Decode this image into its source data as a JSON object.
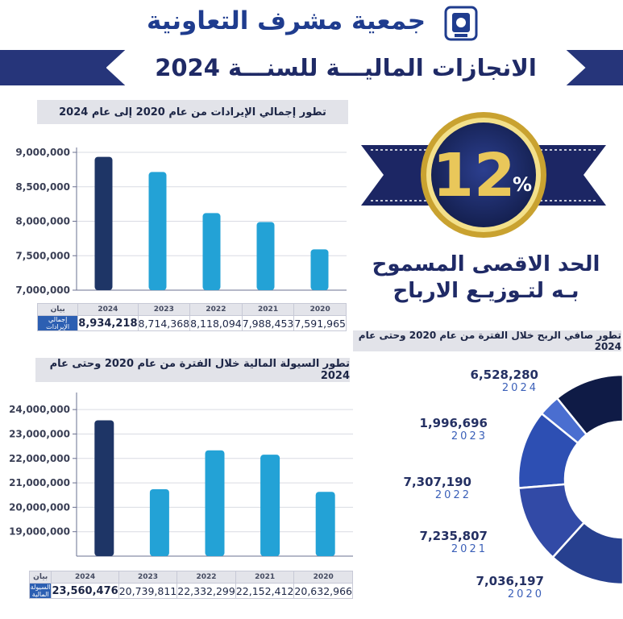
{
  "header": {
    "org_name": "جمعية مشرف التعاونية",
    "banner": "الانجازات الماليـــة للسنـــة 2024"
  },
  "highlight": {
    "value": "12",
    "unit": "%",
    "caption_line1": "الحد الاقصى المسموح",
    "caption_line2": "بـه لتـوزيـع الارباح"
  },
  "revenue": {
    "title": "تطور إجمالي الإيرادات من عام 2020 إلى عام 2024",
    "table_header": "بيان",
    "series_label": "إجمالي الإيرادات",
    "years": [
      "2024",
      "2023",
      "2022",
      "2021",
      "2020"
    ],
    "display_values": [
      "8,934,218",
      "8,714,368",
      "8,118,094",
      "7,988,453",
      "7,591,965"
    ]
  },
  "liquidity": {
    "title": "تطور السيولة المالية خلال الفترة من عام 2020 وحتى عام 2024",
    "table_header": "بيان",
    "series_label": "السيولة المالية",
    "years": [
      "2024",
      "2023",
      "2022",
      "2021",
      "2020"
    ],
    "display_values": [
      "23,560,476",
      "20,739,811",
      "22,332,299",
      "22,152,412",
      "20,632,966"
    ]
  },
  "profit": {
    "title": "تطور صافي الربح خلال الفترة من عام 2020 وحتى عام 2024",
    "items": [
      {
        "year": "2024",
        "value": "6,528,280"
      },
      {
        "year": "2023",
        "value": "1,996,696"
      },
      {
        "year": "2022",
        "value": "7,307,190"
      },
      {
        "year": "2021",
        "value": "7,235,807"
      },
      {
        "year": "2020",
        "value": "7,036,197"
      }
    ]
  },
  "colors": {
    "dark_bar": "#1e3566",
    "light_bar": "#23a2d6",
    "banner": "#26357a",
    "gold": "#d8b340"
  },
  "chart_data": [
    {
      "type": "bar",
      "title": "تطور إجمالي الإيرادات من عام 2020 إلى عام 2024",
      "categories": [
        "2024",
        "2023",
        "2022",
        "2021",
        "2020"
      ],
      "values": [
        8934218,
        8714368,
        8118094,
        7988453,
        7591965
      ],
      "ylim": [
        7000000,
        9000000
      ],
      "yticks": [
        "9,000,000",
        "8,500,000",
        "8,000,000",
        "7,500,000",
        "7,000,000"
      ],
      "ytick_values": [
        9000000,
        8500000,
        8000000,
        7500000,
        7000000
      ],
      "grid": true
    },
    {
      "type": "bar",
      "title": "تطور السيولة المالية خلال الفترة من عام 2020 وحتى عام 2024",
      "categories": [
        "2024",
        "2023",
        "2022",
        "2021",
        "2020"
      ],
      "values": [
        23560476,
        20739811,
        22332299,
        22152412,
        20632966
      ],
      "ylim": [
        18000000,
        24500000
      ],
      "yticks": [
        "24,000,000",
        "23,000,000",
        "22,000,000",
        "21,000,000",
        "20,000,000",
        "19,000,000"
      ],
      "ytick_values": [
        24000000,
        23000000,
        22000000,
        21000000,
        20000000,
        19000000
      ],
      "grid": true
    },
    {
      "type": "pie",
      "title": "تطور صافي الربح خلال الفترة من عام 2020 وحتى عام 2024",
      "categories": [
        "2024",
        "2023",
        "2022",
        "2021",
        "2020"
      ],
      "values": [
        6528280,
        1996696,
        7307190,
        7235807,
        7036197
      ]
    }
  ]
}
